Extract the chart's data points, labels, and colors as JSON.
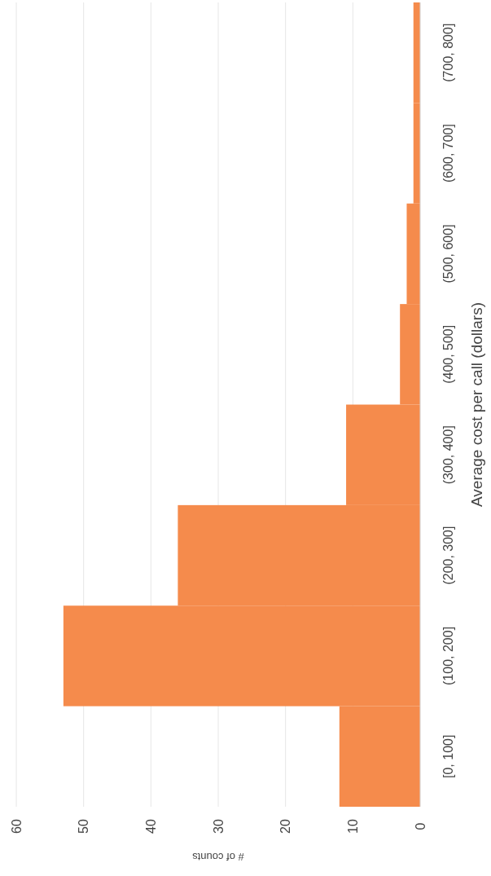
{
  "chart_data": {
    "type": "bar",
    "orientation": "horizontal",
    "xlabel": "# of counts",
    "ylabel": "Average cost per call (dollars)",
    "categories": [
      "(700, 800]",
      "(600, 700]",
      "(500, 600]",
      "(400, 500]",
      "(300, 400]",
      "(200, 300]",
      "(100, 200]",
      "[0, 100]"
    ],
    "values": [
      1,
      1,
      2,
      3,
      11,
      36,
      53,
      12
    ],
    "color": "#f58b4c",
    "xlim": [
      60,
      0
    ],
    "xticks": [
      60,
      50,
      40,
      30,
      20,
      10,
      0
    ],
    "grid": "x"
  }
}
